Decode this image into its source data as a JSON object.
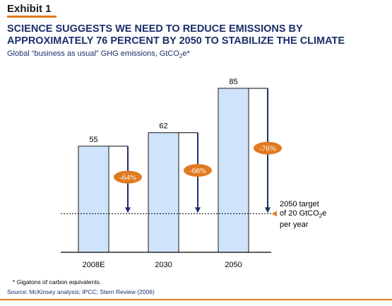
{
  "header": {
    "exhibit": "Exhibit 1",
    "title": "SCIENCE SUGGESTS WE NEED TO REDUCE EMISSIONS BY APPROXIMATELY 76 PERCENT BY 2050 TO STABILIZE THE CLIMATE",
    "subtitle_pre": "Global “business as usual” GHG emissions, GtCO",
    "subtitle_sub": "2",
    "subtitle_post": "e*"
  },
  "chart_data": {
    "type": "bar",
    "categories": [
      "2008E",
      "2030",
      "2050"
    ],
    "values": [
      55,
      62,
      85
    ],
    "reductions": [
      "-64%",
      "-68%",
      "-76%"
    ],
    "target_value": 20,
    "target_line1": "2050 target",
    "target_line2_pre": "of 20 GtCO",
    "target_line2_sub": "2",
    "target_line2_post": "e",
    "target_line3": "per year",
    "ylim": [
      0,
      100
    ],
    "grid": false,
    "colors": {
      "bar_fill": "#cfe3fb",
      "bar_stroke": "#1a1a1a",
      "arrow": "#1b2f6b",
      "badge": "#e07a1f",
      "accent": "#e07a1f"
    }
  },
  "footer": {
    "footnote": "* Gigatons of carbon equivalents.",
    "source": "Source: McKinsey analysis; IPCC; Stern Review (2006)"
  }
}
